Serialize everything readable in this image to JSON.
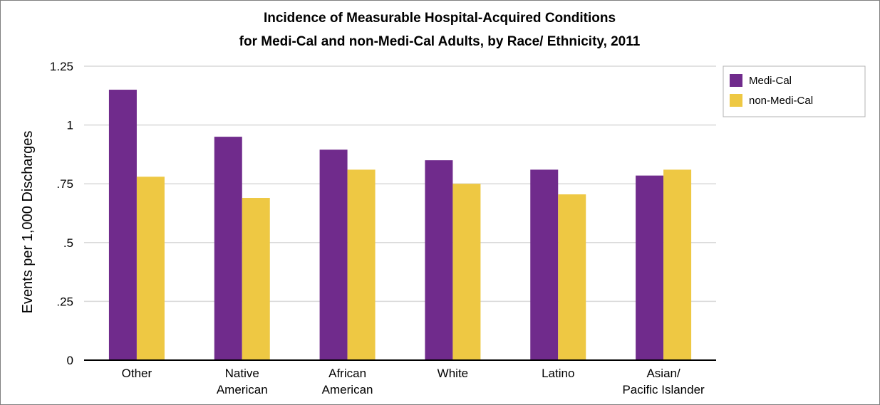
{
  "chart_data": {
    "type": "bar",
    "title": "Incidence of Measurable Hospital-Acquired Conditions",
    "subtitle": "for Medi-Cal and non-Medi-Cal Adults, by Race/ Ethnicity, 2011",
    "ylabel": "Events per 1,000 Discharges",
    "xlabel": "",
    "ylim": [
      0,
      1.25
    ],
    "yticks": [
      {
        "value": 0,
        "label": "0"
      },
      {
        "value": 0.25,
        "label": ".25"
      },
      {
        "value": 0.5,
        "label": ".5"
      },
      {
        "value": 0.75,
        "label": ".75"
      },
      {
        "value": 1,
        "label": "1"
      },
      {
        "value": 1.25,
        "label": "1.25"
      }
    ],
    "grid": true,
    "legend_position": "right-top",
    "categories": [
      [
        "Other"
      ],
      [
        "Native",
        "American"
      ],
      [
        "African",
        "American"
      ],
      [
        "White"
      ],
      [
        "Latino"
      ],
      [
        "Asian/",
        "Pacific Islander"
      ]
    ],
    "series": [
      {
        "name": "Medi-Cal",
        "color": "#702b8c",
        "values": [
          1.15,
          0.95,
          0.895,
          0.85,
          0.81,
          0.785
        ]
      },
      {
        "name": "non-Medi-Cal",
        "color": "#eec843",
        "values": [
          0.78,
          0.69,
          0.81,
          0.75,
          0.705,
          0.81
        ]
      }
    ]
  }
}
